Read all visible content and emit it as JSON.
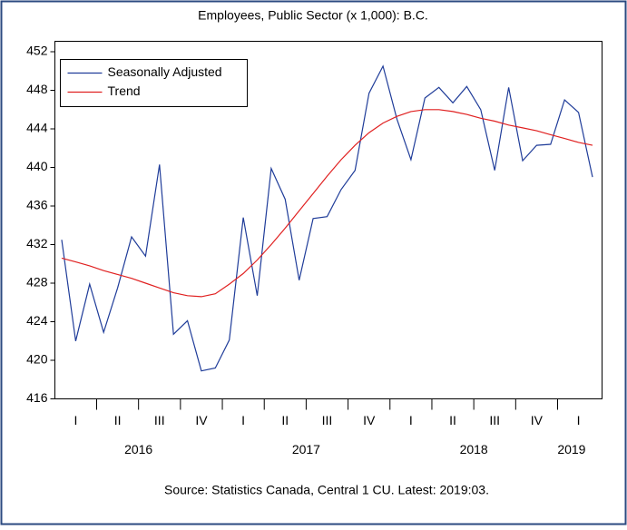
{
  "chart_data": {
    "type": "line",
    "title": "Employees, Public Sector (x 1,000): B.C.",
    "source": "Source: Statistics Canada, Central 1 CU. Latest: 2019:03.",
    "categories": [
      null,
      "I",
      null,
      null,
      "II",
      null,
      null,
      "III",
      null,
      null,
      "IV",
      null,
      null,
      "I",
      null,
      null,
      "II",
      null,
      null,
      "III",
      null,
      null,
      "IV",
      null,
      null,
      "I",
      null,
      null,
      "II",
      null,
      null,
      "III",
      null,
      null,
      "IV",
      null,
      null,
      "I",
      null
    ],
    "year_categories": [
      null,
      null,
      null,
      null,
      null,
      null,
      "2016",
      null,
      null,
      null,
      null,
      null,
      null,
      null,
      null,
      null,
      null,
      null,
      "2017",
      null,
      null,
      null,
      null,
      null,
      null,
      null,
      null,
      null,
      null,
      null,
      "2018",
      null,
      null,
      null,
      null,
      null,
      null,
      "2019",
      null
    ],
    "series": [
      {
        "name": "Seasonally Adjusted",
        "color": "#1f3c99",
        "values": [
          432.5,
          422.0,
          427.9,
          422.9,
          427.5,
          432.8,
          430.8,
          440.3,
          422.7,
          424.1,
          418.9,
          419.2,
          422.1,
          434.8,
          426.7,
          439.9,
          436.7,
          428.3,
          434.7,
          434.9,
          437.7,
          439.7,
          447.7,
          450.5,
          445.0,
          440.8,
          447.2,
          448.3,
          446.7,
          448.4,
          446.0,
          439.7,
          448.3,
          440.7,
          442.3,
          442.4,
          447.0,
          445.7,
          439.0
        ]
      },
      {
        "name": "Trend",
        "color": "#e02020",
        "values": [
          430.6,
          430.2,
          429.8,
          429.3,
          428.9,
          428.5,
          428.0,
          427.5,
          427.0,
          426.7,
          426.6,
          426.9,
          427.9,
          429.0,
          430.4,
          432.0,
          433.7,
          435.5,
          437.3,
          439.1,
          440.8,
          442.3,
          443.6,
          444.6,
          445.3,
          445.8,
          446.0,
          446.0,
          445.8,
          445.5,
          445.1,
          444.8,
          444.4,
          444.1,
          443.8,
          443.4,
          443.0,
          442.6,
          442.3
        ]
      }
    ],
    "ylim": [
      416,
      452
    ],
    "yticks": [
      416,
      420,
      424,
      428,
      432,
      436,
      440,
      444,
      448,
      452
    ],
    "grid": false,
    "legend": "top-left"
  }
}
